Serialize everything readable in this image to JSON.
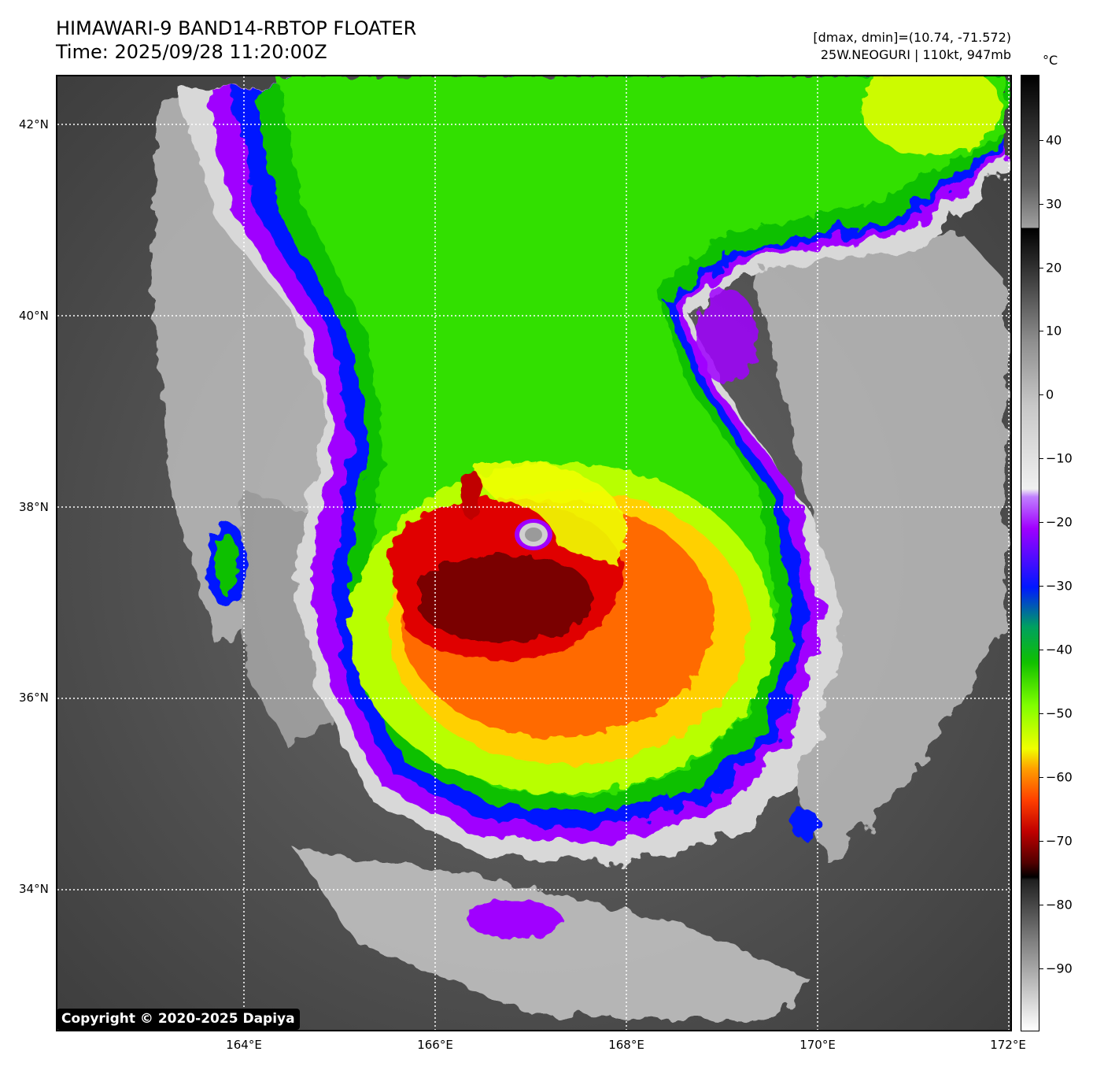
{
  "header": {
    "title_line1": "HIMAWARI-9 BAND14-RBTOP FLOATER",
    "title_line2": "Time: 2025/09/28 11:20:00Z",
    "info_line1": "[dmax, dmin]=(10.74, -71.572)",
    "info_line2": "25W.NEOGURI | 110kt, 947mb"
  },
  "map": {
    "description_icon": "satellite-ir-image",
    "lat_labels": [
      "42°N",
      "40°N",
      "38°N",
      "36°N",
      "34°N"
    ],
    "lon_labels": [
      "164°E",
      "166°E",
      "168°E",
      "170°E",
      "172°E"
    ],
    "copyright": "Copyright © 2020-2025 Dapiya"
  },
  "colorbar": {
    "unit": "°C",
    "ticks": [
      "40",
      "30",
      "20",
      "10",
      "0",
      "−10",
      "−20",
      "−30",
      "−40",
      "−50",
      "−60",
      "−70",
      "−80",
      "−90"
    ]
  },
  "colors": {
    "cold_top": "#5a0000",
    "red": "#e00000",
    "orange": "#ff7a00",
    "yellow": "#e8ff00",
    "green": "#22e000",
    "blue": "#0010ff",
    "purple": "#a000ff",
    "gray_cloud": "#d0d0d0",
    "ocean": "#4a4a4a"
  }
}
